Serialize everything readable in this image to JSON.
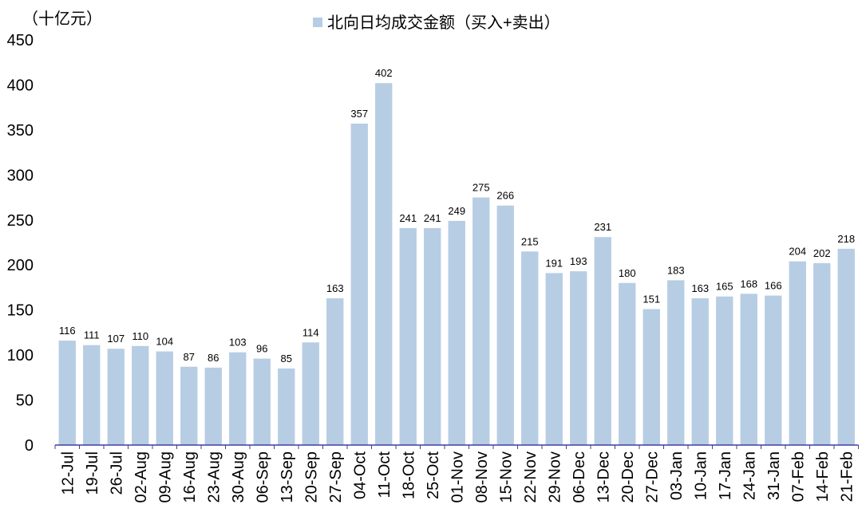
{
  "chart_data": {
    "type": "bar",
    "y_label": "（十亿元）",
    "series": [
      {
        "name": "北向日均成交金额（买入+卖出）",
        "color": "#b7cde4",
        "values": [
          116,
          111,
          107,
          110,
          104,
          87,
          86,
          103,
          96,
          85,
          114,
          163,
          357,
          402,
          241,
          241,
          249,
          275,
          266,
          215,
          191,
          193,
          231,
          180,
          151,
          183,
          163,
          165,
          168,
          166,
          204,
          202,
          218
        ]
      }
    ],
    "categories": [
      "12-Jul",
      "19-Jul",
      "26-Jul",
      "02-Aug",
      "09-Aug",
      "16-Aug",
      "23-Aug",
      "30-Aug",
      "06-Sep",
      "13-Sep",
      "20-Sep",
      "27-Sep",
      "04-Oct",
      "11-Oct",
      "18-Oct",
      "25-Oct",
      "01-Nov",
      "08-Nov",
      "15-Nov",
      "22-Nov",
      "29-Nov",
      "06-Dec",
      "13-Dec",
      "20-Dec",
      "27-Dec",
      "03-Jan",
      "10-Jan",
      "17-Jan",
      "24-Jan",
      "31-Jan",
      "07-Feb",
      "14-Feb",
      "21-Feb"
    ],
    "ylim": [
      0,
      450
    ],
    "yticks": [
      0,
      50,
      100,
      150,
      200,
      250,
      300,
      350,
      400,
      450
    ],
    "grid": false,
    "legend": "top"
  }
}
